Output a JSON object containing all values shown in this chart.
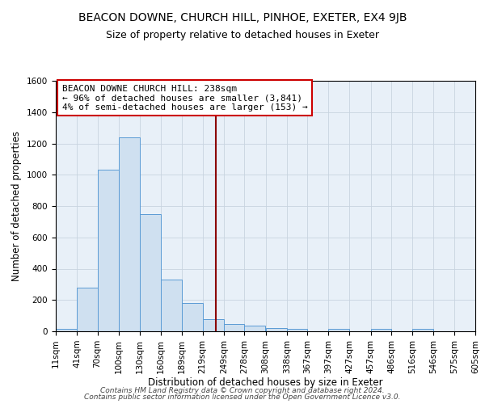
{
  "title": "BEACON DOWNE, CHURCH HILL, PINHOE, EXETER, EX4 9JB",
  "subtitle": "Size of property relative to detached houses in Exeter",
  "xlabel": "Distribution of detached houses by size in Exeter",
  "ylabel": "Number of detached properties",
  "bin_labels": [
    "11sqm",
    "41sqm",
    "70sqm",
    "100sqm",
    "130sqm",
    "160sqm",
    "189sqm",
    "219sqm",
    "249sqm",
    "278sqm",
    "308sqm",
    "338sqm",
    "367sqm",
    "397sqm",
    "427sqm",
    "457sqm",
    "486sqm",
    "516sqm",
    "546sqm",
    "575sqm",
    "605sqm"
  ],
  "bin_edges": [
    11,
    41,
    70,
    100,
    130,
    160,
    189,
    219,
    249,
    278,
    308,
    338,
    367,
    397,
    427,
    457,
    486,
    516,
    546,
    575,
    605
  ],
  "bar_heights": [
    15,
    280,
    1030,
    1240,
    750,
    330,
    180,
    80,
    45,
    35,
    20,
    15,
    0,
    15,
    0,
    15,
    0,
    15,
    0,
    0
  ],
  "bar_fill_color": "#cfe0f0",
  "bar_edge_color": "#5b9bd5",
  "vline_x": 238,
  "vline_color": "#8b0000",
  "annotation_line1": "BEACON DOWNE CHURCH HILL: 238sqm",
  "annotation_line2": "← 96% of detached houses are smaller (3,841)",
  "annotation_line3": "4% of semi-detached houses are larger (153) →",
  "annotation_box_color": "#ffffff",
  "annotation_box_edge": "#cc0000",
  "ylim": [
    0,
    1600
  ],
  "yticks": [
    0,
    200,
    400,
    600,
    800,
    1000,
    1200,
    1400,
    1600
  ],
  "grid_color": "#c8d4e0",
  "bg_color": "#e8f0f8",
  "footer_line1": "Contains HM Land Registry data © Crown copyright and database right 2024.",
  "footer_line2": "Contains public sector information licensed under the Open Government Licence v3.0.",
  "title_fontsize": 10,
  "subtitle_fontsize": 9,
  "axis_label_fontsize": 8.5,
  "tick_fontsize": 7.5,
  "annotation_fontsize": 8,
  "footer_fontsize": 6.5
}
